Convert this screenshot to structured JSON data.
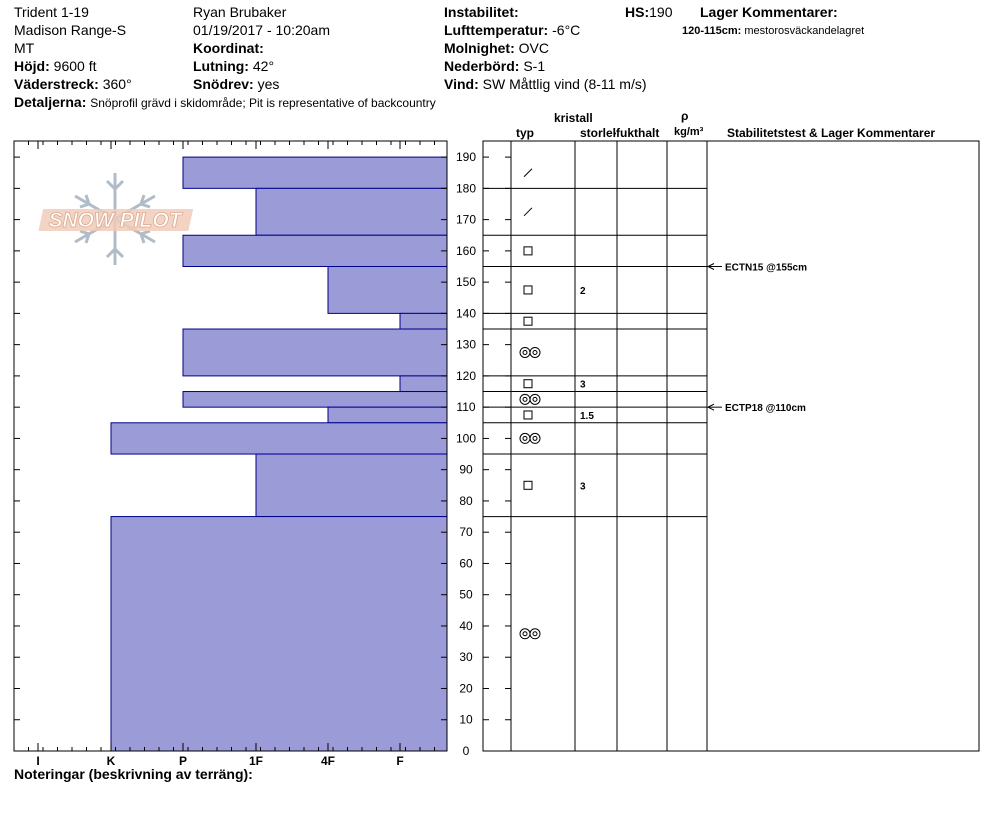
{
  "header": {
    "location": "Trident 1-19",
    "range": "Madison Range-S",
    "state": "MT",
    "elevation_label": "Höjd:",
    "elevation": "9600 ft",
    "aspect_label": "Väderstreck:",
    "aspect": "360°",
    "details_label": "Detaljerna:",
    "details": "Snöprofil grävd i skidområde; Pit is representative of backcountry",
    "observer": "Ryan Brubaker",
    "datetime": "01/19/2017 - 10:20am",
    "coord_label": "Koordinat:",
    "slope_label": "Lutning:",
    "slope": "42°",
    "drift_label": "Snödrev:",
    "drift": "yes",
    "instability_label": "Instabilitet:",
    "airtemp_label": "Lufttemperatur:",
    "airtemp": "-6°C",
    "sky_label": "Molnighet:",
    "sky": "OVC",
    "precip_label": "Nederbörd:",
    "precip": "S-1",
    "wind_label": "Vind:",
    "wind": "SW  Måttlig vind (8-11 m/s)",
    "hs_label": "HS:",
    "hs": "190",
    "layer_comments_label": "Lager Kommentarer:",
    "layer_comment_depth": "120-115cm:",
    "layer_comment_text": "mestorosväckandelagret"
  },
  "logo_text": "SNOW PILOT",
  "notes_label": "Noteringar (beskrivning av terräng):",
  "columns": {
    "crystal": "kristall",
    "type": "typ",
    "size": "storlek",
    "moisture": "fukthalt",
    "rho": "ρ",
    "density_unit": "kg/m³",
    "stability": "Stabilitetstest & Lager Kommentarer"
  },
  "colors": {
    "layer_fill": "#9b9bd7",
    "layer_stroke": "#00008b"
  },
  "chart_data": {
    "type": "bar",
    "orientation": "horizontal",
    "xlabel": "",
    "ylabel": "",
    "ylim": [
      0,
      195
    ],
    "yticks": [
      0,
      10,
      20,
      30,
      40,
      50,
      60,
      70,
      80,
      90,
      100,
      110,
      120,
      130,
      140,
      150,
      160,
      170,
      180,
      190
    ],
    "hardness_ticks": [
      "I",
      "K",
      "P",
      "1F",
      "4F",
      "F"
    ],
    "layers": [
      {
        "top": 190,
        "bottom": 180,
        "hardness": "P",
        "grain": "new",
        "size": ""
      },
      {
        "top": 180,
        "bottom": 165,
        "hardness": "1F",
        "grain": "new",
        "size": ""
      },
      {
        "top": 165,
        "bottom": 155,
        "hardness": "P",
        "grain": "faceted",
        "size": ""
      },
      {
        "top": 155,
        "bottom": 140,
        "hardness": "4F",
        "grain": "faceted",
        "size": "2"
      },
      {
        "top": 140,
        "bottom": 135,
        "hardness": "F",
        "grain": "faceted",
        "size": ""
      },
      {
        "top": 135,
        "bottom": 120,
        "hardness": "P",
        "grain": "melt",
        "size": ""
      },
      {
        "top": 120,
        "bottom": 115,
        "hardness": "F",
        "grain": "faceted",
        "size": "3"
      },
      {
        "top": 115,
        "bottom": 110,
        "hardness": "P",
        "grain": "melt",
        "size": ""
      },
      {
        "top": 110,
        "bottom": 105,
        "hardness": "4F",
        "grain": "faceted",
        "size": "1.5"
      },
      {
        "top": 105,
        "bottom": 95,
        "hardness": "K",
        "grain": "melt",
        "size": ""
      },
      {
        "top": 95,
        "bottom": 75,
        "hardness": "1F",
        "grain": "faceted",
        "size": "3"
      },
      {
        "top": 75,
        "bottom": 0,
        "hardness": "K",
        "grain": "melt",
        "size": ""
      }
    ],
    "tests": [
      {
        "depth": 155,
        "label": "ECTN15 @155cm"
      },
      {
        "depth": 110,
        "label": "ECTP18 @110cm"
      }
    ]
  }
}
